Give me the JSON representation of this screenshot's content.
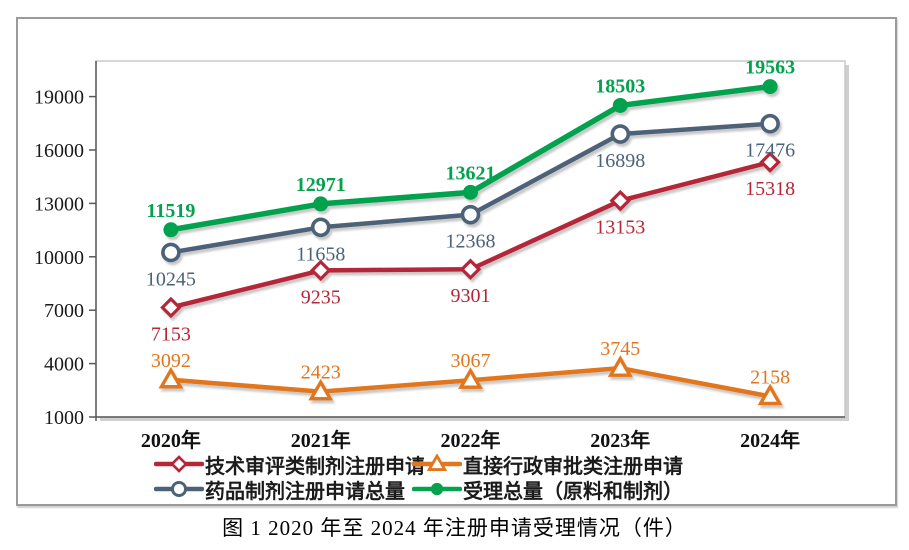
{
  "figure": {
    "caption": "图 1  2020 年至 2024 年注册申请受理情况（件）"
  },
  "chart_data": {
    "type": "line",
    "title": "",
    "xlabel": "",
    "ylabel": "",
    "categories": [
      "2020年",
      "2021年",
      "2022年",
      "2023年",
      "2024年"
    ],
    "y_ticks": [
      1000,
      4000,
      7000,
      10000,
      13000,
      16000,
      19000
    ],
    "ylim": [
      1000,
      21000
    ],
    "grid": false,
    "legend_position": "bottom",
    "series": [
      {
        "id": "tech-review-apps",
        "name": "技术审评类制剂注册申请",
        "color": "#b42638",
        "marker": "diamond-open",
        "label_position": "below",
        "bold_labels": false,
        "values": [
          7153,
          9235,
          9301,
          13153,
          15318
        ]
      },
      {
        "id": "direct-admin-apps",
        "name": "直接行政审批类注册申请",
        "color": "#e2761d",
        "marker": "triangle-open",
        "label_position": "above",
        "bold_labels": false,
        "values": [
          3092,
          2423,
          3067,
          3745,
          2158
        ]
      },
      {
        "id": "drug-formulation-total",
        "name": "药品制剂注册申请总量",
        "color": "#4d6278",
        "marker": "circle-open",
        "label_position": "below",
        "bold_labels": false,
        "values": [
          10245,
          11658,
          12368,
          16898,
          17476
        ]
      },
      {
        "id": "total-accepted",
        "name": "受理总量（原料和制剂）",
        "color": "#04a24e",
        "marker": "circle-filled",
        "label_position": "above",
        "bold_labels": true,
        "values": [
          11519,
          12971,
          13621,
          18503,
          19563
        ]
      }
    ]
  }
}
